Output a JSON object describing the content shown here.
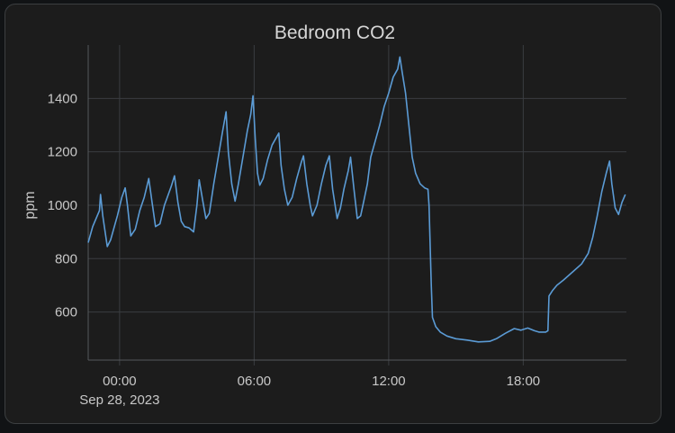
{
  "card": {
    "background": "#1c1c1c",
    "border": "#3c3f41"
  },
  "chart_data": {
    "type": "line",
    "title": "Bedroom CO2",
    "xlabel": "",
    "ylabel": "ppm",
    "x_unit": "hours since midnight Sep 28, 2023",
    "xlim": [
      -1.4,
      22.6
    ],
    "ylim": [
      420,
      1600
    ],
    "x_ticks": [
      {
        "value": 0,
        "label": "00:00",
        "sublabel": "Sep 28, 2023"
      },
      {
        "value": 6,
        "label": "06:00",
        "sublabel": ""
      },
      {
        "value": 12,
        "label": "12:00",
        "sublabel": ""
      },
      {
        "value": 18,
        "label": "18:00",
        "sublabel": ""
      }
    ],
    "y_ticks": [
      600,
      800,
      1000,
      1200,
      1400
    ],
    "grid": true,
    "legend": "none",
    "line_color": "#5b9bd5",
    "grid_color": "#3a3d40",
    "series": [
      {
        "name": "",
        "points": [
          [
            -1.4,
            860
          ],
          [
            -1.2,
            920
          ],
          [
            -0.9,
            980
          ],
          [
            -0.85,
            1040
          ],
          [
            -0.75,
            960
          ],
          [
            -0.55,
            845
          ],
          [
            -0.4,
            870
          ],
          [
            -0.2,
            930
          ],
          [
            -0.1,
            960
          ],
          [
            0.1,
            1030
          ],
          [
            0.25,
            1065
          ],
          [
            0.35,
            1000
          ],
          [
            0.5,
            885
          ],
          [
            0.7,
            910
          ],
          [
            0.9,
            980
          ],
          [
            1.1,
            1030
          ],
          [
            1.3,
            1100
          ],
          [
            1.45,
            1010
          ],
          [
            1.6,
            920
          ],
          [
            1.8,
            930
          ],
          [
            2.0,
            1000
          ],
          [
            2.3,
            1070
          ],
          [
            2.45,
            1110
          ],
          [
            2.6,
            1010
          ],
          [
            2.75,
            940
          ],
          [
            2.9,
            920
          ],
          [
            3.1,
            915
          ],
          [
            3.3,
            900
          ],
          [
            3.45,
            1000
          ],
          [
            3.55,
            1095
          ],
          [
            3.7,
            1020
          ],
          [
            3.85,
            950
          ],
          [
            4.0,
            970
          ],
          [
            4.2,
            1080
          ],
          [
            4.4,
            1180
          ],
          [
            4.6,
            1280
          ],
          [
            4.75,
            1350
          ],
          [
            4.85,
            1200
          ],
          [
            5.0,
            1080
          ],
          [
            5.15,
            1015
          ],
          [
            5.3,
            1080
          ],
          [
            5.5,
            1180
          ],
          [
            5.7,
            1280
          ],
          [
            5.85,
            1340
          ],
          [
            5.95,
            1410
          ],
          [
            6.05,
            1250
          ],
          [
            6.15,
            1120
          ],
          [
            6.25,
            1075
          ],
          [
            6.4,
            1100
          ],
          [
            6.6,
            1170
          ],
          [
            6.8,
            1225
          ],
          [
            7.0,
            1255
          ],
          [
            7.1,
            1270
          ],
          [
            7.2,
            1150
          ],
          [
            7.35,
            1060
          ],
          [
            7.5,
            1000
          ],
          [
            7.7,
            1030
          ],
          [
            7.9,
            1100
          ],
          [
            8.1,
            1160
          ],
          [
            8.2,
            1185
          ],
          [
            8.35,
            1080
          ],
          [
            8.5,
            1000
          ],
          [
            8.6,
            960
          ],
          [
            8.8,
            1000
          ],
          [
            9.0,
            1080
          ],
          [
            9.2,
            1150
          ],
          [
            9.35,
            1185
          ],
          [
            9.5,
            1060
          ],
          [
            9.7,
            950
          ],
          [
            9.85,
            990
          ],
          [
            10.0,
            1060
          ],
          [
            10.2,
            1130
          ],
          [
            10.3,
            1180
          ],
          [
            10.45,
            1060
          ],
          [
            10.6,
            950
          ],
          [
            10.75,
            960
          ],
          [
            10.9,
            1020
          ],
          [
            11.05,
            1080
          ],
          [
            11.2,
            1180
          ],
          [
            11.4,
            1240
          ],
          [
            11.6,
            1300
          ],
          [
            11.8,
            1370
          ],
          [
            12.0,
            1420
          ],
          [
            12.2,
            1480
          ],
          [
            12.4,
            1510
          ],
          [
            12.5,
            1555
          ],
          [
            12.6,
            1500
          ],
          [
            12.75,
            1420
          ],
          [
            12.9,
            1300
          ],
          [
            13.05,
            1180
          ],
          [
            13.2,
            1120
          ],
          [
            13.4,
            1080
          ],
          [
            13.6,
            1065
          ],
          [
            13.75,
            1060
          ],
          [
            13.8,
            1000
          ],
          [
            13.9,
            700
          ],
          [
            13.95,
            580
          ],
          [
            14.1,
            545
          ],
          [
            14.3,
            525
          ],
          [
            14.6,
            510
          ],
          [
            15.0,
            500
          ],
          [
            15.5,
            495
          ],
          [
            16.0,
            488
          ],
          [
            16.5,
            490
          ],
          [
            16.8,
            500
          ],
          [
            17.2,
            520
          ],
          [
            17.6,
            538
          ],
          [
            17.9,
            532
          ],
          [
            18.2,
            540
          ],
          [
            18.5,
            530
          ],
          [
            18.7,
            525
          ],
          [
            19.0,
            525
          ],
          [
            19.1,
            530
          ],
          [
            19.15,
            660
          ],
          [
            19.3,
            680
          ],
          [
            19.5,
            700
          ],
          [
            19.8,
            720
          ],
          [
            20.2,
            750
          ],
          [
            20.6,
            780
          ],
          [
            20.9,
            820
          ],
          [
            21.1,
            880
          ],
          [
            21.3,
            960
          ],
          [
            21.5,
            1050
          ],
          [
            21.7,
            1120
          ],
          [
            21.85,
            1165
          ],
          [
            21.95,
            1080
          ],
          [
            22.1,
            990
          ],
          [
            22.25,
            965
          ],
          [
            22.4,
            1010
          ],
          [
            22.55,
            1040
          ]
        ]
      }
    ]
  }
}
